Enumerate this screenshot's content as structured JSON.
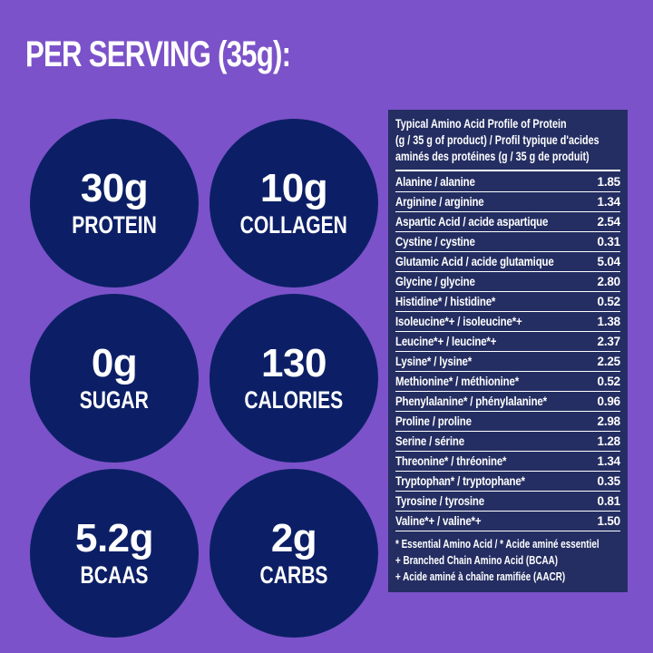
{
  "heading": "PER SERVING (35g):",
  "colors": {
    "background": "#7B52C9",
    "circle_navy": "#0C1F66",
    "table_navy": "#242E62",
    "text": "#FFFFFF"
  },
  "stats": [
    {
      "value": "30g",
      "label": "PROTEIN"
    },
    {
      "value": "10g",
      "label": "COLLAGEN"
    },
    {
      "value": "0g",
      "label": "SUGAR"
    },
    {
      "value": "130",
      "label": "CALORIES"
    },
    {
      "value": "5.2g",
      "label": "BCAAS"
    },
    {
      "value": "2g",
      "label": "CARBS"
    }
  ],
  "amino_table": {
    "title": "Typical Amino Acid Profile of Protein (g / 35 g of product) / Profil typique d'acides aminés des protéines (g / 35 g de produit)",
    "title_lines": [
      "Typical Amino Acid Profile of Protein",
      "(g / 35 g of product) / Profil typique d'acides",
      "aminés des protéines (g / 35 g de produit)"
    ],
    "rows": [
      {
        "name": "Alanine / alanine",
        "value": "1.85"
      },
      {
        "name": "Arginine / arginine",
        "value": "1.34"
      },
      {
        "name": "Aspartic Acid / acide aspartique",
        "value": "2.54"
      },
      {
        "name": "Cystine / cystine",
        "value": "0.31"
      },
      {
        "name": "Glutamic Acid / acide glutamique",
        "value": "5.04"
      },
      {
        "name": "Glycine / glycine",
        "value": "2.80"
      },
      {
        "name": "Histidine* / histidine*",
        "value": "0.52"
      },
      {
        "name": "Isoleucine*+ / isoleucine*+",
        "value": "1.38"
      },
      {
        "name": "Leucine*+ / leucine*+",
        "value": "2.37"
      },
      {
        "name": "Lysine* / lysine*",
        "value": "2.25"
      },
      {
        "name": "Methionine* / méthionine*",
        "value": "0.52"
      },
      {
        "name": "Phenylalanine* / phénylalanine*",
        "value": "0.96"
      },
      {
        "name": "Proline / proline",
        "value": "2.98"
      },
      {
        "name": "Serine / sérine",
        "value": "1.28"
      },
      {
        "name": "Threonine* / thréonine*",
        "value": "1.34"
      },
      {
        "name": "Tryptophan* / tryptophane*",
        "value": "0.35"
      },
      {
        "name": "Tyrosine / tyrosine",
        "value": "0.81"
      },
      {
        "name": "Valine*+ / valine*+",
        "value": "1.50"
      }
    ],
    "footnotes": [
      "* Essential Amino Acid / * Acide aminé essentiel",
      "+ Branched Chain Amino Acid (BCAA)",
      "+ Acide aminé à chaîne ramifiée (AACR)"
    ]
  }
}
